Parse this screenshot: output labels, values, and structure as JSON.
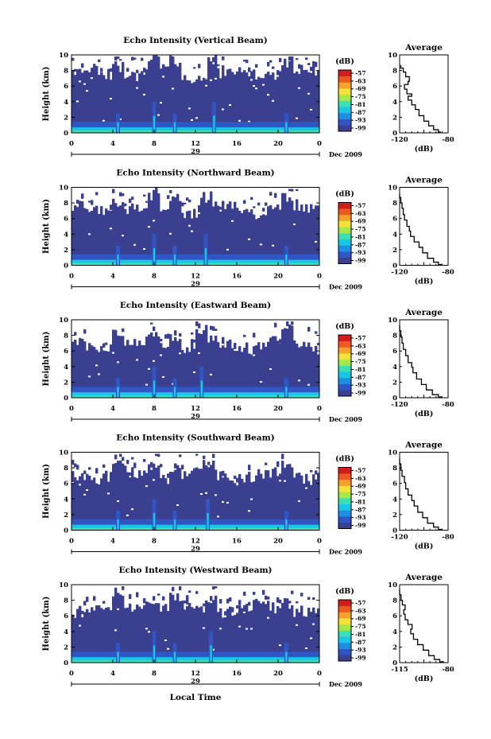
{
  "chart_data": [
    {
      "type": "heatmap",
      "title": "Echo Intensity (Vertical Beam)",
      "ylabel": "Height (km)",
      "ylim": [
        0,
        10
      ],
      "yticks": [
        "0",
        "2",
        "4",
        "6",
        "8",
        "10"
      ],
      "xlim": [
        0,
        24
      ],
      "xticks": [
        "0",
        "4",
        "8",
        "12",
        "16",
        "20",
        "0"
      ],
      "day_label": "29",
      "date_label": "Dec 2009",
      "colorbar": {
        "unit": "(dB)",
        "ticks": [
          "-57",
          "-63",
          "-69",
          "-75",
          "-81",
          "-87",
          "-93",
          "-99"
        ]
      },
      "average_profile": {
        "title": "Average",
        "xlabel": "(dB)",
        "xticks": [
          "-120",
          "-80"
        ],
        "xlim": [
          -120,
          -80
        ],
        "ylim": [
          0,
          10
        ],
        "yticks": [
          "0",
          "2",
          "4",
          "6",
          "8",
          "10"
        ],
        "points": [
          [
            -86,
            0.1
          ],
          [
            -88,
            0.4
          ],
          [
            -92,
            0.9
          ],
          [
            -96,
            1.5
          ],
          [
            -100,
            2.2
          ],
          [
            -104,
            3.0
          ],
          [
            -107,
            3.6
          ],
          [
            -110,
            4.2
          ],
          [
            -113,
            4.7
          ],
          [
            -110,
            5.0
          ],
          [
            -114,
            5.6
          ],
          [
            -116,
            6.2
          ],
          [
            -113,
            6.6
          ],
          [
            -112,
            7.2
          ],
          [
            -115,
            7.8
          ],
          [
            -117,
            8.3
          ],
          [
            -119,
            8.7
          ]
        ]
      },
      "top_km": 9.0,
      "features": [
        4.5,
        8.0,
        10.0,
        13.8,
        20.8
      ]
    },
    {
      "type": "heatmap",
      "title": "Echo Intensity (Northward Beam)",
      "ylabel": "Height (km)",
      "ylim": [
        0,
        10
      ],
      "yticks": [
        "0",
        "2",
        "4",
        "6",
        "8",
        "10"
      ],
      "xlim": [
        0,
        24
      ],
      "xticks": [
        "0",
        "4",
        "8",
        "12",
        "16",
        "20",
        "0"
      ],
      "day_label": "29",
      "date_label": "Dec 2009",
      "colorbar": {
        "unit": "(dB)",
        "ticks": [
          "-57",
          "-63",
          "-69",
          "-75",
          "-81",
          "-87",
          "-93",
          "-99"
        ]
      },
      "average_profile": {
        "title": "Average",
        "xlabel": "(dB)",
        "xticks": [
          "-120",
          "-80"
        ],
        "xlim": [
          -120,
          -80
        ],
        "ylim": [
          0,
          10
        ],
        "yticks": [
          "0",
          "2",
          "4",
          "6",
          "8",
          "10"
        ],
        "points": [
          [
            -85,
            0.1
          ],
          [
            -88,
            0.4
          ],
          [
            -92,
            0.9
          ],
          [
            -97,
            1.6
          ],
          [
            -101,
            2.3
          ],
          [
            -104,
            3.0
          ],
          [
            -108,
            3.7
          ],
          [
            -111,
            4.4
          ],
          [
            -112,
            5.0
          ],
          [
            -114,
            5.8
          ],
          [
            -116,
            6.5
          ],
          [
            -117,
            7.3
          ],
          [
            -118,
            8.0
          ],
          [
            -119,
            8.7
          ],
          [
            -120,
            9.2
          ]
        ]
      },
      "top_km": 8.6,
      "features": [
        4.5,
        8.0,
        10.0,
        13.0,
        20.8
      ]
    },
    {
      "type": "heatmap",
      "title": "Echo Intensity (Eastward Beam)",
      "ylabel": "Height (km)",
      "ylim": [
        0,
        10
      ],
      "yticks": [
        "0",
        "2",
        "4",
        "6",
        "8",
        "10"
      ],
      "xlim": [
        0,
        24
      ],
      "xticks": [
        "0",
        "4",
        "8",
        "12",
        "16",
        "20",
        "0"
      ],
      "day_label": "29",
      "date_label": "Dec 2009",
      "colorbar": {
        "unit": "(dB)",
        "ticks": [
          "-57",
          "-63",
          "-69",
          "-75",
          "-81",
          "-87",
          "-93",
          "-99"
        ]
      },
      "average_profile": {
        "title": "Average",
        "xlabel": "(dB)",
        "xticks": [
          "-120",
          "-80"
        ],
        "xlim": [
          -120,
          -80
        ],
        "ylim": [
          0,
          10
        ],
        "yticks": [
          "0",
          "2",
          "4",
          "6",
          "8",
          "10"
        ],
        "points": [
          [
            -85,
            0.1
          ],
          [
            -88,
            0.4
          ],
          [
            -93,
            1.0
          ],
          [
            -98,
            1.7
          ],
          [
            -102,
            2.4
          ],
          [
            -106,
            3.2
          ],
          [
            -109,
            3.9
          ],
          [
            -110,
            4.5
          ],
          [
            -113,
            5.4
          ],
          [
            -115,
            6.2
          ],
          [
            -117,
            7.0
          ],
          [
            -118,
            7.8
          ],
          [
            -119,
            8.6
          ],
          [
            -120,
            9.3
          ]
        ]
      },
      "top_km": 8.2,
      "features": [
        4.5,
        8.0,
        10.0,
        12.6,
        20.8
      ]
    },
    {
      "type": "heatmap",
      "title": "Echo Intensity (Southward Beam)",
      "ylabel": "Height (km)",
      "ylim": [
        0,
        10
      ],
      "yticks": [
        "0",
        "2",
        "4",
        "6",
        "8",
        "10"
      ],
      "xlim": [
        0,
        24
      ],
      "xticks": [
        "0",
        "4",
        "8",
        "12",
        "16",
        "20",
        "0"
      ],
      "day_label": "29",
      "date_label": "Dec 2009",
      "colorbar": {
        "unit": "(dB)",
        "ticks": [
          "-57",
          "-63",
          "-69",
          "-75",
          "-81",
          "-87",
          "-93",
          "-99"
        ]
      },
      "average_profile": {
        "title": "Average",
        "xlabel": "(dB)",
        "xticks": [
          "-120",
          "-80"
        ],
        "xlim": [
          -120,
          -80
        ],
        "ylim": [
          0,
          10
        ],
        "yticks": [
          "0",
          "2",
          "4",
          "6",
          "8",
          "10"
        ],
        "points": [
          [
            -85,
            0.1
          ],
          [
            -88,
            0.4
          ],
          [
            -92,
            0.9
          ],
          [
            -97,
            1.6
          ],
          [
            -101,
            2.3
          ],
          [
            -105,
            3.1
          ],
          [
            -108,
            3.8
          ],
          [
            -110,
            4.5
          ],
          [
            -113,
            5.3
          ],
          [
            -115,
            6.1
          ],
          [
            -116,
            6.9
          ],
          [
            -118,
            7.7
          ],
          [
            -119,
            8.5
          ],
          [
            -120,
            9.2
          ]
        ]
      },
      "top_km": 8.4,
      "features": [
        4.5,
        8.0,
        10.0,
        13.2,
        20.8
      ]
    },
    {
      "type": "heatmap",
      "title": "Echo Intensity (Westward Beam)",
      "ylabel": "Height (km)",
      "ylim": [
        0,
        10
      ],
      "yticks": [
        "0",
        "2",
        "4",
        "6",
        "8",
        "10"
      ],
      "xlim": [
        0,
        24
      ],
      "xticks": [
        "0",
        "4",
        "8",
        "12",
        "16",
        "20",
        "0"
      ],
      "day_label": "29",
      "date_label": "Dec 2009",
      "colorbar": {
        "unit": "(dB)",
        "ticks": [
          "-57",
          "-63",
          "-69",
          "-75",
          "-81",
          "-87",
          "-93",
          "-99"
        ]
      },
      "average_profile": {
        "title": "Average",
        "xlabel": "(dB)",
        "xticks": [
          "-115",
          "-80"
        ],
        "xlim": [
          -115,
          -80
        ],
        "ylim": [
          0,
          10
        ],
        "yticks": [
          "0",
          "2",
          "4",
          "6",
          "8",
          "10"
        ],
        "points": [
          [
            -83,
            0.1
          ],
          [
            -86,
            0.4
          ],
          [
            -90,
            0.9
          ],
          [
            -94,
            1.6
          ],
          [
            -98,
            2.3
          ],
          [
            -102,
            3.0
          ],
          [
            -105,
            3.7
          ],
          [
            -107,
            4.3
          ],
          [
            -106,
            4.9
          ],
          [
            -109,
            5.5
          ],
          [
            -111,
            6.2
          ],
          [
            -112,
            6.8
          ],
          [
            -111,
            7.4
          ],
          [
            -113,
            8.0
          ],
          [
            -114,
            8.7
          ],
          [
            -115,
            9.4
          ]
        ]
      },
      "top_km": 8.4,
      "features": [
        4.5,
        8.0,
        10.0,
        13.5,
        20.8
      ]
    }
  ],
  "footer": {
    "xlabel": "Local Time"
  },
  "colors": {
    "scale": [
      "#3a3f8f",
      "#2f56c4",
      "#1e8fe0",
      "#19c6e6",
      "#3de0b6",
      "#a6e84a",
      "#f2e23a",
      "#f6a12b",
      "#ec5a22",
      "#d01e1e"
    ]
  }
}
